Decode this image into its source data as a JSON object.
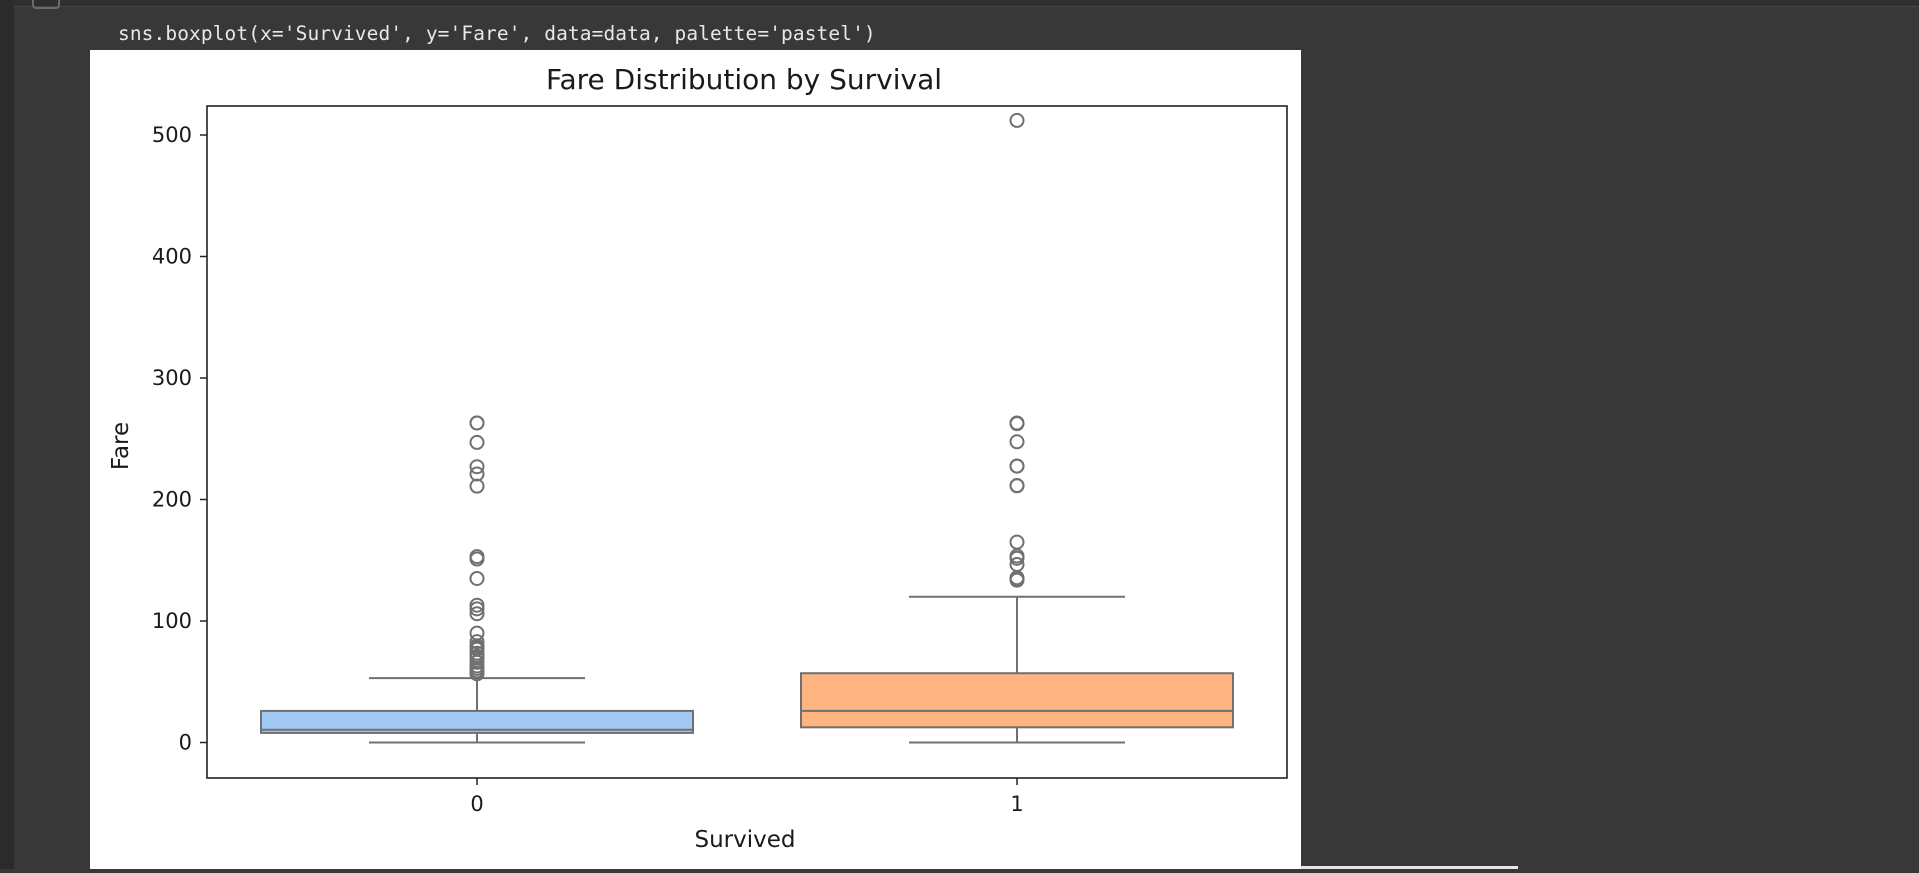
{
  "notebook": {
    "code_line": "sns.boxplot(x='Survived', y='Fare', data=data, palette='pastel')"
  },
  "chart_data": {
    "type": "box",
    "title": "Fare Distribution by Survival",
    "xlabel": "Survived",
    "ylabel": "Fare",
    "categories": [
      "0",
      "1"
    ],
    "ylim": [
      -25,
      540
    ],
    "yticks": [
      0,
      100,
      200,
      300,
      400,
      500
    ],
    "grid": false,
    "legend": "none",
    "boxes": [
      {
        "category": "0",
        "color": "#a1c9f4",
        "whisker_low": 0,
        "q1": 7.9,
        "median": 10.5,
        "q3": 26,
        "whisker_high": 53,
        "outliers": [
          56.5,
          57,
          59,
          61,
          63,
          66,
          69.5,
          71,
          73.5,
          76.7,
          78,
          79.6,
          83,
          90,
          106,
          110,
          113,
          135,
          151,
          153,
          211,
          221,
          227,
          247,
          263,
          263
        ]
      },
      {
        "category": "1",
        "color": "#ffb482",
        "whisker_low": 0,
        "q1": 12.5,
        "median": 26,
        "q3": 57,
        "whisker_high": 120,
        "outliers": [
          133.6,
          134.5,
          135.6,
          146.5,
          151.6,
          153.5,
          164.9,
          211.3,
          211.5,
          227.5,
          227.5,
          247.5,
          262.4,
          263,
          512
        ]
      }
    ]
  }
}
